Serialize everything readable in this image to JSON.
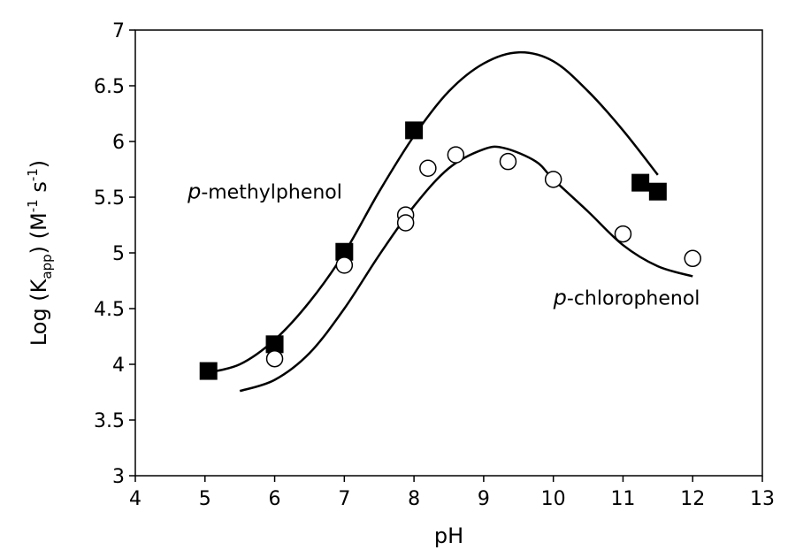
{
  "chart_data": {
    "type": "scatter",
    "xlabel": "pH",
    "ylabel": {
      "base": "Log (K",
      "sub": "app",
      "mid": ") (M",
      "sup1": "-1",
      "space": " s",
      "sup2": "-1",
      "end": ")"
    },
    "xlim": [
      4,
      13
    ],
    "ylim": [
      3,
      7
    ],
    "xticks": [
      4,
      5,
      6,
      7,
      8,
      9,
      10,
      11,
      12,
      13
    ],
    "yticks": [
      3,
      3.5,
      4,
      4.5,
      5,
      5.5,
      6,
      6.5,
      7
    ],
    "xtick_labels": [
      "4",
      "5",
      "6",
      "7",
      "8",
      "9",
      "10",
      "11",
      "12",
      "13"
    ],
    "ytick_labels": [
      "3",
      "3.5",
      "4",
      "4.5",
      "5",
      "5.5",
      "6",
      "6.5",
      "7"
    ],
    "grid": false,
    "series": [
      {
        "marker": "filled-square",
        "points": [
          [
            5.05,
            3.94
          ],
          [
            6.0,
            4.18
          ],
          [
            7.0,
            5.01
          ],
          [
            8.0,
            6.1
          ],
          [
            11.25,
            5.63
          ],
          [
            11.5,
            5.55
          ]
        ]
      },
      {
        "marker": "open-circle",
        "points": [
          [
            6.0,
            4.05
          ],
          [
            7.0,
            4.89
          ],
          [
            7.88,
            5.34
          ],
          [
            7.88,
            5.27
          ],
          [
            8.2,
            5.76
          ],
          [
            8.6,
            5.88
          ],
          [
            9.35,
            5.82
          ],
          [
            10.0,
            5.66
          ],
          [
            11.0,
            5.17
          ],
          [
            12.0,
            4.95
          ]
        ]
      }
    ],
    "curves": [
      {
        "points": [
          [
            5.0,
            3.92
          ],
          [
            5.5,
            4.0
          ],
          [
            6.0,
            4.22
          ],
          [
            6.5,
            4.56
          ],
          [
            7.0,
            5.0
          ],
          [
            7.5,
            5.55
          ],
          [
            8.0,
            6.05
          ],
          [
            8.5,
            6.45
          ],
          [
            9.0,
            6.7
          ],
          [
            9.5,
            6.8
          ],
          [
            10.0,
            6.72
          ],
          [
            10.5,
            6.45
          ],
          [
            11.0,
            6.1
          ],
          [
            11.5,
            5.7
          ]
        ]
      },
      {
        "points": [
          [
            5.5,
            3.76
          ],
          [
            6.0,
            3.86
          ],
          [
            6.5,
            4.1
          ],
          [
            7.0,
            4.5
          ],
          [
            7.5,
            4.98
          ],
          [
            8.0,
            5.42
          ],
          [
            8.5,
            5.76
          ],
          [
            9.0,
            5.93
          ],
          [
            9.3,
            5.94
          ],
          [
            9.75,
            5.82
          ],
          [
            10.0,
            5.66
          ],
          [
            10.5,
            5.37
          ],
          [
            11.0,
            5.07
          ],
          [
            11.5,
            4.88
          ],
          [
            12.0,
            4.79
          ]
        ]
      }
    ],
    "annotations": [
      {
        "prefix": "p",
        "text": "-methylphenol",
        "x": 4.75,
        "y": 5.55
      },
      {
        "prefix": "p",
        "text": "-chlorophenol",
        "x": 10.0,
        "y": 4.6
      }
    ]
  }
}
